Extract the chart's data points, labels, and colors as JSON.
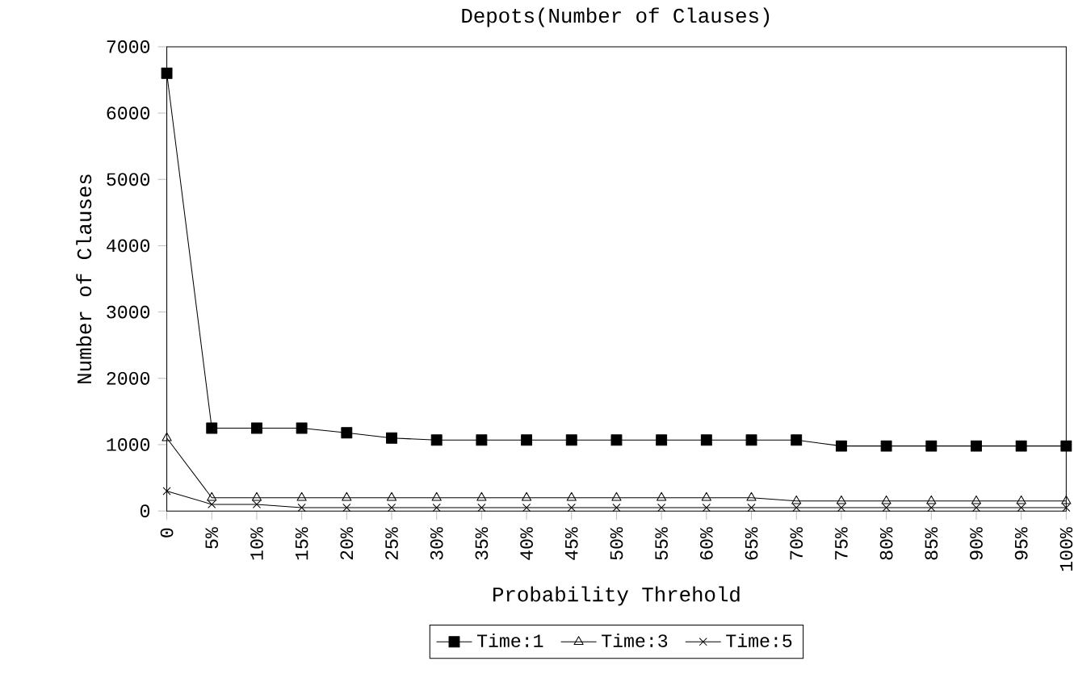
{
  "chart_data": {
    "type": "line",
    "title": "Depots(Number of Clauses)",
    "xlabel": "Probability Threhold",
    "ylabel": "Number of Clauses",
    "categories": [
      "0",
      "5%",
      "10%",
      "15%",
      "20%",
      "25%",
      "30%",
      "35%",
      "40%",
      "45%",
      "50%",
      "55%",
      "60%",
      "65%",
      "70%",
      "75%",
      "80%",
      "85%",
      "90%",
      "95%",
      "100%"
    ],
    "series": [
      {
        "name": "Time:1",
        "color": "#000000",
        "marker": "square",
        "values": [
          6600,
          1250,
          1250,
          1250,
          1180,
          1100,
          1070,
          1070,
          1070,
          1070,
          1070,
          1070,
          1070,
          1070,
          1070,
          980,
          980,
          980,
          980,
          980,
          980
        ]
      },
      {
        "name": "Time:3",
        "color": "#000000",
        "marker": "triangle",
        "values": [
          1100,
          200,
          200,
          200,
          200,
          200,
          200,
          200,
          200,
          200,
          200,
          200,
          200,
          200,
          150,
          150,
          150,
          150,
          150,
          150,
          150
        ]
      },
      {
        "name": "Time:5",
        "color": "#000000",
        "marker": "cross",
        "values": [
          300,
          100,
          100,
          50,
          50,
          50,
          50,
          50,
          50,
          50,
          50,
          50,
          50,
          50,
          50,
          50,
          50,
          50,
          50,
          50,
          50
        ]
      }
    ],
    "ylim": [
      0,
      7000
    ],
    "yticks": [
      0,
      1000,
      2000,
      3000,
      4000,
      5000,
      6000,
      7000
    ],
    "grid": false,
    "legend": "bottom"
  }
}
